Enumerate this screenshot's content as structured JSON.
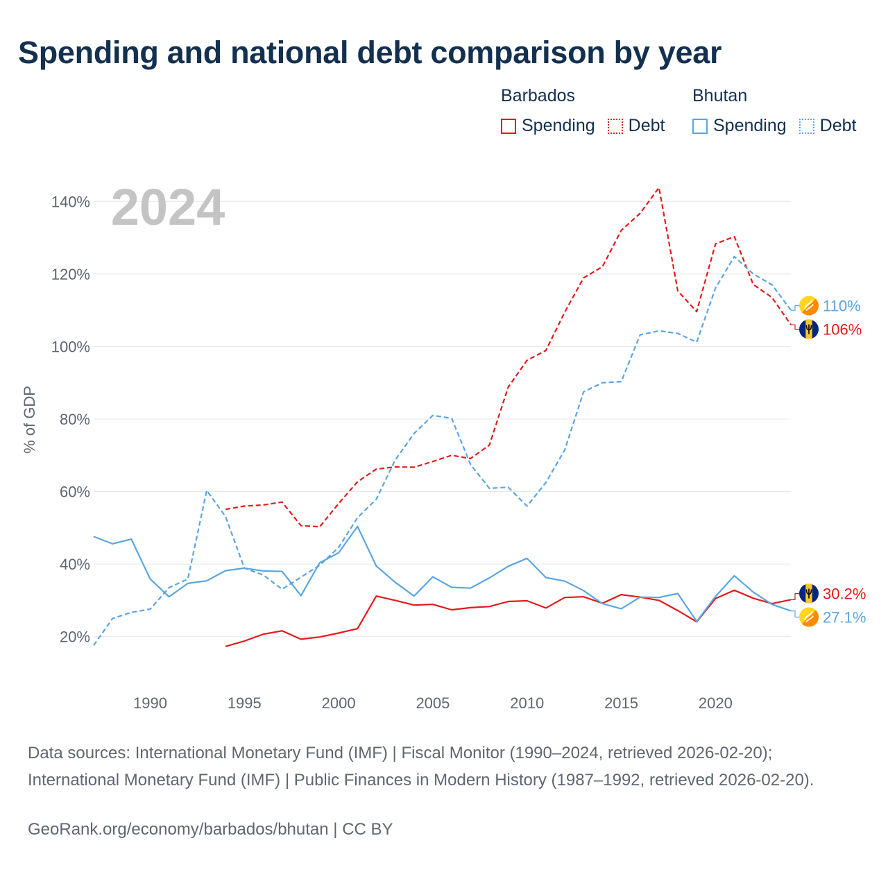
{
  "title": "Spending and national debt comparison by year",
  "legend": {
    "groups": [
      {
        "country": "Barbados",
        "items": [
          {
            "label": "Spending",
            "style": "solid",
            "color": "#e31a1c"
          },
          {
            "label": "Debt",
            "style": "dotted",
            "color": "#e31a1c"
          }
        ]
      },
      {
        "country": "Bhutan",
        "items": [
          {
            "label": "Spending",
            "style": "solid",
            "color": "#5aa5e2"
          },
          {
            "label": "Debt",
            "style": "dotted",
            "color": "#5aa5e2"
          }
        ]
      }
    ]
  },
  "chart_data": {
    "type": "line",
    "year_label": "2024",
    "ylabel": "% of GDP",
    "xlim": [
      1987,
      2024
    ],
    "ylim": [
      10,
      150
    ],
    "x_ticks": [
      1990,
      1995,
      2000,
      2005,
      2010,
      2015,
      2020
    ],
    "y_ticks": [
      20,
      40,
      60,
      80,
      100,
      120,
      140
    ],
    "y_tick_labels": [
      "20%",
      "40%",
      "60%",
      "80%",
      "100%",
      "120%",
      "140%"
    ],
    "series": [
      {
        "name": "Barbados Spending",
        "country": "Barbados",
        "measure": "Spending",
        "style": "solid",
        "color": "#e31a1c",
        "x": [
          1994,
          1995,
          1996,
          1997,
          1998,
          1999,
          2000,
          2001,
          2002,
          2003,
          2004,
          2005,
          2006,
          2007,
          2008,
          2009,
          2010,
          2011,
          2012,
          2013,
          2014,
          2015,
          2016,
          2017,
          2018,
          2019,
          2020,
          2021,
          2022,
          2023,
          2024
        ],
        "values": [
          17.3,
          18.8,
          20.7,
          21.6,
          19.3,
          19.9,
          21.0,
          22.2,
          31.2,
          30.0,
          28.7,
          28.9,
          27.4,
          28.0,
          28.3,
          29.7,
          29.9,
          27.9,
          30.8,
          31.0,
          29.2,
          31.6,
          30.9,
          30.0,
          27.2,
          24.1,
          30.5,
          32.8,
          30.6,
          29.1,
          30.2
        ],
        "end_label": "30.2%"
      },
      {
        "name": "Barbados Debt",
        "country": "Barbados",
        "measure": "Debt",
        "style": "dashed",
        "color": "#e31a1c",
        "x": [
          1994,
          1995,
          1996,
          1997,
          1998,
          1999,
          2000,
          2001,
          2002,
          2003,
          2004,
          2005,
          2006,
          2007,
          2008,
          2009,
          2010,
          2011,
          2012,
          2013,
          2014,
          2015,
          2016,
          2017,
          2018,
          2019,
          2020,
          2021,
          2022,
          2023,
          2024
        ],
        "values": [
          55.1,
          56.0,
          56.3,
          57.1,
          50.6,
          50.3,
          56.7,
          62.7,
          66.2,
          66.8,
          66.7,
          68.3,
          70.0,
          69.1,
          72.8,
          88.8,
          96.2,
          98.9,
          109.5,
          118.9,
          122.0,
          132.0,
          136.7,
          143.8,
          115.3,
          109.6,
          128.3,
          130.3,
          117.1,
          113.5,
          106.0
        ],
        "end_label": "106%"
      },
      {
        "name": "Bhutan Spending",
        "country": "Bhutan",
        "measure": "Spending",
        "style": "solid",
        "color": "#5aa5e2",
        "x": [
          1987,
          1988,
          1989,
          1990,
          1991,
          1992,
          1993,
          1994,
          1995,
          1996,
          1997,
          1998,
          1999,
          2000,
          2001,
          2002,
          2003,
          2004,
          2005,
          2006,
          2007,
          2008,
          2009,
          2010,
          2011,
          2012,
          2013,
          2014,
          2015,
          2016,
          2017,
          2018,
          2019,
          2020,
          2021,
          2022,
          2023,
          2024
        ],
        "values": [
          47.6,
          45.6,
          46.9,
          35.9,
          31.0,
          34.7,
          35.4,
          38.2,
          38.9,
          38.1,
          38.0,
          31.3,
          40.4,
          43.1,
          50.4,
          39.5,
          35.0,
          31.2,
          36.5,
          33.6,
          33.4,
          36.2,
          39.4,
          41.6,
          36.3,
          35.3,
          32.7,
          29.1,
          27.7,
          30.9,
          30.8,
          31.9,
          24.2,
          31.1,
          36.8,
          32.3,
          28.9,
          27.1
        ],
        "end_label": "27.1%"
      },
      {
        "name": "Bhutan Debt",
        "country": "Bhutan",
        "measure": "Debt",
        "style": "dashed",
        "color": "#5aa5e2",
        "x": [
          1987,
          1988,
          1989,
          1990,
          1991,
          1992,
          1993,
          1994,
          1995,
          1996,
          1997,
          1998,
          1999,
          2000,
          2001,
          2002,
          2003,
          2004,
          2005,
          2006,
          2007,
          2008,
          2009,
          2010,
          2011,
          2012,
          2013,
          2014,
          2015,
          2016,
          2017,
          2018,
          2019,
          2020,
          2021,
          2022,
          2023,
          2024
        ],
        "values": [
          17.6,
          25.0,
          26.7,
          27.6,
          33.5,
          35.9,
          60.3,
          53.1,
          38.9,
          37.0,
          33.1,
          36.4,
          39.7,
          44.6,
          52.8,
          57.9,
          68.7,
          76.0,
          81.0,
          80.2,
          67.5,
          60.9,
          61.2,
          56.0,
          62.5,
          71.5,
          87.5,
          90.0,
          90.3,
          103.2,
          104.3,
          103.6,
          101.2,
          116.1,
          124.8,
          120.0,
          117.0,
          110.0
        ],
        "end_label": "110%"
      }
    ]
  },
  "footer": {
    "source": "Data sources: International Monetary Fund (IMF) | Fiscal Monitor (1990–2024, retrieved 2026-02-20); International Monetary Fund (IMF) | Public Finances in Modern History (1987–1992, retrieved 2026-02-20).",
    "credit": "GeoRank.org/economy/barbados/bhutan | CC BY"
  }
}
